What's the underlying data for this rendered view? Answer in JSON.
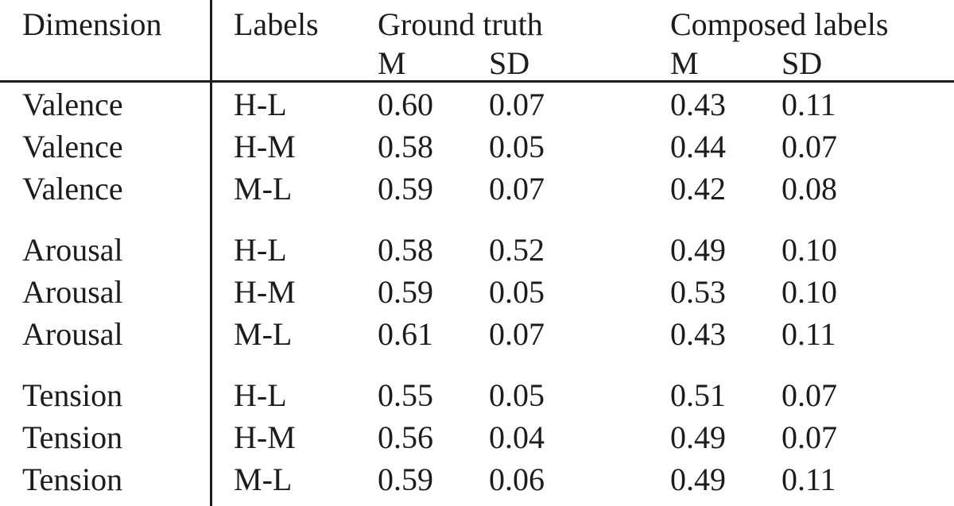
{
  "table": {
    "header": {
      "dimension": "Dimension",
      "labels": "Labels",
      "ground_truth": "Ground truth",
      "composed_labels": "Composed labels",
      "gt_m": "M",
      "gt_sd": "SD",
      "cl_m": "M",
      "cl_sd": "SD"
    },
    "rows": [
      {
        "dimension": "Valence",
        "labels": "H-L",
        "gt_m": "0.60",
        "gt_sd": "0.07",
        "cl_m": "0.43",
        "cl_sd": "0.11"
      },
      {
        "dimension": "Valence",
        "labels": "H-M",
        "gt_m": "0.58",
        "gt_sd": "0.05",
        "cl_m": "0.44",
        "cl_sd": "0.07"
      },
      {
        "dimension": "Valence",
        "labels": "M-L",
        "gt_m": "0.59",
        "gt_sd": "0.07",
        "cl_m": "0.42",
        "cl_sd": "0.08"
      },
      {
        "dimension": "Arousal",
        "labels": "H-L",
        "gt_m": "0.58",
        "gt_sd": "0.52",
        "cl_m": "0.49",
        "cl_sd": "0.10"
      },
      {
        "dimension": "Arousal",
        "labels": "H-M",
        "gt_m": "0.59",
        "gt_sd": "0.05",
        "cl_m": "0.53",
        "cl_sd": "0.10"
      },
      {
        "dimension": "Arousal",
        "labels": "M-L",
        "gt_m": "0.61",
        "gt_sd": "0.07",
        "cl_m": "0.43",
        "cl_sd": "0.11"
      },
      {
        "dimension": "Tension",
        "labels": "H-L",
        "gt_m": "0.55",
        "gt_sd": "0.05",
        "cl_m": "0.51",
        "cl_sd": "0.07"
      },
      {
        "dimension": "Tension",
        "labels": "H-M",
        "gt_m": "0.56",
        "gt_sd": "0.04",
        "cl_m": "0.49",
        "cl_sd": "0.07"
      },
      {
        "dimension": "Tension",
        "labels": "M-L",
        "gt_m": "0.59",
        "gt_sd": "0.06",
        "cl_m": "0.49",
        "cl_sd": "0.11"
      }
    ],
    "colors": {
      "text": "#1c1c1c",
      "background": "#ffffff",
      "rule": "#1c1c1c"
    }
  }
}
